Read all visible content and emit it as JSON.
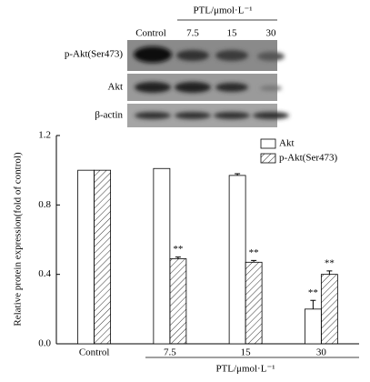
{
  "blot": {
    "columns": [
      "Control",
      "7.5",
      "15",
      "30"
    ],
    "group_label": "PTL/μmol·L⁻¹",
    "rows": [
      "p-Akt(Ser473)",
      "Akt",
      "β-actin"
    ]
  },
  "chart_data": {
    "type": "bar",
    "y_label": "Relative protein expression(fold of control)",
    "x_label": "PTL/μmol·L⁻¹",
    "categories": [
      "Control",
      "7.5",
      "15",
      "30"
    ],
    "series": [
      {
        "name": "Akt",
        "color": "#ffffff",
        "hatch": false,
        "values": [
          1.0,
          1.01,
          0.97,
          0.2
        ],
        "errors": [
          null,
          null,
          0.01,
          0.05
        ],
        "significance": [
          null,
          null,
          null,
          "**"
        ]
      },
      {
        "name": "p-Akt(Ser473)",
        "color": "#ffffff",
        "hatch": true,
        "values": [
          1.0,
          0.49,
          0.47,
          0.4
        ],
        "errors": [
          null,
          0.01,
          0.01,
          0.02
        ],
        "significance": [
          null,
          "**",
          "**",
          "**"
        ]
      }
    ],
    "ylim": [
      0,
      1.2
    ],
    "yticks": [
      {
        "value": 0,
        "label": "0.0"
      },
      0.4,
      0.8,
      1.2
    ],
    "legend": "top-right"
  }
}
